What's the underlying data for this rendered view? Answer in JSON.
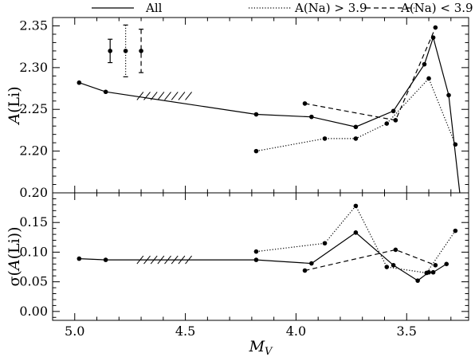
{
  "legend": [
    {
      "label": "All",
      "dash": "solid"
    },
    {
      "label": "A(Na) > 3.9",
      "dash": "dotted"
    },
    {
      "label": "A(Na) < 3.9",
      "dash": "dashed"
    }
  ],
  "chart_data": [
    {
      "type": "line",
      "panel": "top",
      "xlabel": "",
      "ylabel": "A(Li)",
      "xlim": [
        5.1,
        3.22
      ],
      "ylim": [
        2.15,
        2.36
      ],
      "x_ticks": [
        5.0,
        4.5,
        4.0,
        3.5
      ],
      "y_ticks": [
        "2.20",
        "2.25",
        "2.30",
        "2.35"
      ],
      "x_reversed": true,
      "grid": false,
      "legend_placement": "top, above plot",
      "series": [
        {
          "name": "All",
          "dash": "solid",
          "x": [
            4.98,
            4.86,
            4.18,
            3.93,
            3.73,
            3.56,
            3.42,
            3.38,
            3.31,
            3.26
          ],
          "y": [
            2.282,
            2.271,
            2.244,
            2.241,
            2.229,
            2.248,
            2.304,
            2.336,
            2.267,
            2.15
          ],
          "markers": [
            true,
            true,
            true,
            true,
            true,
            true,
            true,
            true,
            true,
            false
          ]
        },
        {
          "name": "A(Na) > 3.9",
          "dash": "dotted",
          "x": [
            4.18,
            3.87,
            3.73,
            3.59,
            3.4,
            3.28
          ],
          "y": [
            2.2,
            2.215,
            2.215,
            2.233,
            2.287,
            2.208
          ]
        },
        {
          "name": "A(Na) < 3.9",
          "dash": "dashed",
          "x": [
            3.96,
            3.55,
            3.37
          ],
          "y": [
            2.257,
            2.237,
            2.348
          ]
        }
      ],
      "hatch": {
        "x_from": 4.72,
        "x_to": 4.47,
        "y": 2.266
      },
      "error_bars": [
        {
          "dash": "solid",
          "x": 4.84,
          "y": 2.32,
          "err": 0.014
        },
        {
          "dash": "dotted",
          "x": 4.77,
          "y": 2.32,
          "err": 0.031
        },
        {
          "dash": "dashed",
          "x": 4.7,
          "y": 2.32,
          "err": 0.026
        }
      ]
    },
    {
      "type": "line",
      "panel": "bottom",
      "xlabel": "M_V",
      "ylabel": "σ(A(Li))",
      "xlim": [
        5.1,
        3.22
      ],
      "ylim": [
        -0.015,
        0.2
      ],
      "x_ticks": [
        "5.0",
        "4.5",
        "4.0",
        "3.5"
      ],
      "y_ticks": [
        "0.00",
        "0.05",
        "0.10",
        "0.15",
        "0.20"
      ],
      "x_reversed": true,
      "grid": false,
      "series": [
        {
          "name": "All",
          "dash": "solid",
          "x": [
            4.98,
            4.86,
            4.18,
            3.93,
            3.73,
            3.56,
            3.45,
            3.4,
            3.38,
            3.32
          ],
          "y": [
            0.089,
            0.087,
            0.087,
            0.081,
            0.133,
            0.078,
            0.052,
            0.066,
            0.066,
            0.08
          ]
        },
        {
          "name": "A(Na) > 3.9",
          "dash": "dotted",
          "x": [
            4.18,
            3.87,
            3.73,
            3.59,
            3.41,
            3.28
          ],
          "y": [
            0.101,
            0.115,
            0.178,
            0.075,
            0.065,
            0.136
          ]
        },
        {
          "name": "A(Na) < 3.9",
          "dash": "dashed",
          "x": [
            3.96,
            3.55,
            3.37
          ],
          "y": [
            0.069,
            0.104,
            0.078
          ]
        }
      ],
      "hatch": {
        "x_from": 4.72,
        "x_to": 4.47,
        "y": 0.087
      }
    }
  ]
}
